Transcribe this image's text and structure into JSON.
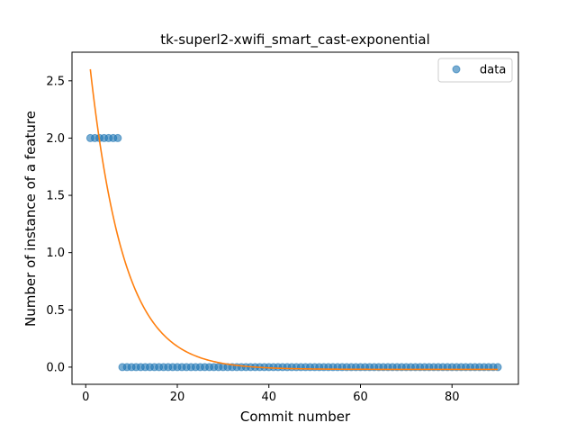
{
  "chart_data": {
    "type": "scatter",
    "title": "tk-superl2-xwifi_smart_cast-exponential",
    "xlabel": "Commit number",
    "ylabel": "Number of instance of a feature",
    "xlim": [
      -3,
      94.5
    ],
    "ylim": [
      -0.15,
      2.75
    ],
    "xticks": [
      0,
      20,
      40,
      60,
      80
    ],
    "yticks": [
      0.0,
      0.5,
      1.0,
      1.5,
      2.0,
      2.5
    ],
    "ytick_labels": [
      "0.0",
      "0.5",
      "1.0",
      "1.5",
      "2.0",
      "2.5"
    ],
    "legend": {
      "position": "top-right",
      "entries": [
        "data"
      ]
    },
    "grid": false,
    "series": [
      {
        "name": "data",
        "kind": "scatter",
        "color": "#1f77b4",
        "segments": [
          {
            "x_from": 1,
            "x_to": 7,
            "y": 2
          },
          {
            "x_from": 8,
            "x_to": 90,
            "y": 0
          }
        ]
      },
      {
        "kind": "line",
        "color": "#ff7f0e",
        "model": "exponential",
        "x_range": [
          1,
          90
        ],
        "a": 3.0,
        "b": 0.135,
        "c": -0.02
      }
    ]
  }
}
